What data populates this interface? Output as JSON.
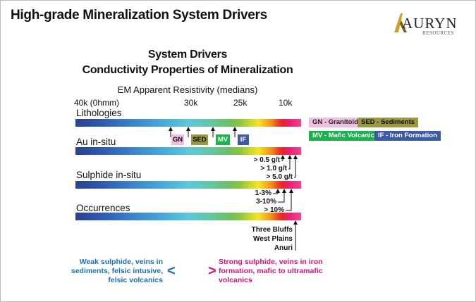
{
  "title": "High-grade Mineralization System Drivers",
  "logo": {
    "name": "AURYN",
    "sub": "RESOURCES"
  },
  "heading": {
    "line1": "System Drivers",
    "line2": "Conductivity Properties of Mineralization"
  },
  "axis": {
    "label": "EM Apparent Resistivity (medians)",
    "ticks": [
      "40k (0hmm)",
      "30k",
      "25k",
      "10k"
    ]
  },
  "rows": [
    "Lithologies",
    "Au in-situ",
    "Sulphide in-situ",
    "Occurrences"
  ],
  "lithology_tags": [
    {
      "label": "GN",
      "color": "#f1bde0"
    },
    {
      "label": "SED",
      "color": "#9c9842"
    },
    {
      "label": "MV",
      "color": "#1bb14c"
    },
    {
      "label": "IF",
      "color": "#3c5aa8"
    }
  ],
  "legend": [
    {
      "label": "GN - Granitoids",
      "color": "#f1bde0",
      "text_color": "#222222"
    },
    {
      "label": "SED - Sediments",
      "color": "#9c9842",
      "text_color": "#111111"
    },
    {
      "label": "MV - Mafic Volcanics",
      "color": "#1bb14c",
      "text_color": "#ffffff"
    },
    {
      "label": "IF - Iron Formation",
      "color": "#3c5aa8",
      "text_color": "#ffffff"
    }
  ],
  "au_grades": [
    "> 0.5 g/t",
    "> 1.0 g/t",
    "> 5.0 g/t"
  ],
  "sulphide_pcts": [
    "1-3%",
    "3-10%",
    "> 10%"
  ],
  "occurrences": [
    "Three Bluffs",
    "West Plains",
    "Anuri"
  ],
  "notes": {
    "weak": "Weak sulphide, veins in sediments, felsic intusive, felsic volcanics",
    "weak_symbol": "<",
    "strong_symbol": ">",
    "strong": "Strong sulphide, veins in iron formation, mafic to ultramafic volcanics"
  },
  "colors": {
    "weak": "#1a6fb6",
    "strong": "#d6147a",
    "logo_accent": "#c9a227"
  }
}
